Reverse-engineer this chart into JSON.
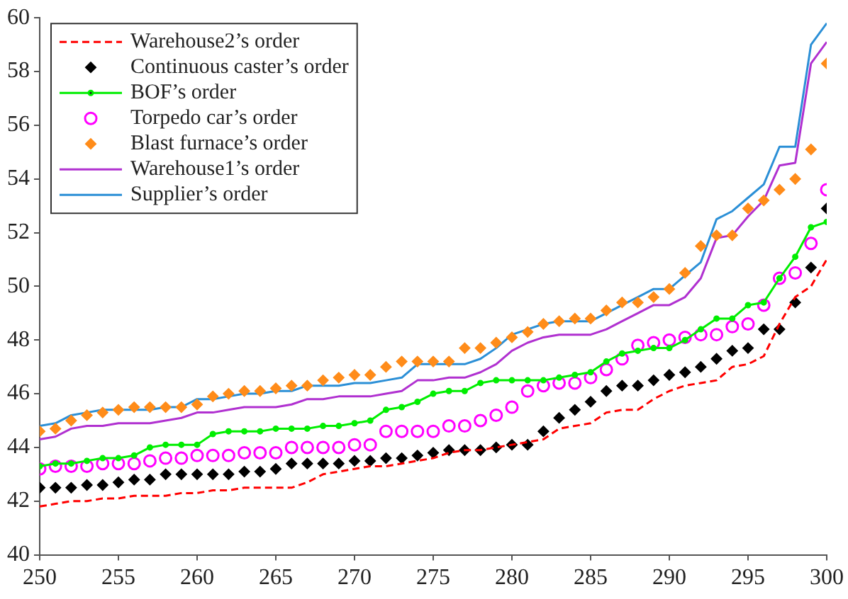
{
  "chart_data": {
    "type": "line",
    "x": [
      250,
      251,
      252,
      253,
      254,
      255,
      256,
      257,
      258,
      259,
      260,
      261,
      262,
      263,
      264,
      265,
      266,
      267,
      268,
      269,
      270,
      271,
      272,
      273,
      274,
      275,
      276,
      277,
      278,
      279,
      280,
      281,
      282,
      283,
      284,
      285,
      286,
      287,
      288,
      289,
      290,
      291,
      292,
      293,
      294,
      295,
      296,
      297,
      298,
      299,
      300
    ],
    "xlim": [
      250,
      300
    ],
    "xticks": [
      250,
      255,
      260,
      265,
      270,
      275,
      280,
      285,
      290,
      295,
      300
    ],
    "ylim": [
      40,
      60
    ],
    "yticks": [
      40,
      42,
      44,
      46,
      48,
      50,
      52,
      54,
      56,
      58,
      60
    ],
    "grid": false,
    "legend": "top left",
    "series": [
      {
        "name": "Warehouse2’s order",
        "type": "line",
        "color": "#ff0000",
        "marker": "none",
        "line_style": "dashed",
        "values": [
          41.8,
          41.9,
          42.0,
          42.0,
          42.1,
          42.1,
          42.2,
          42.2,
          42.2,
          42.3,
          42.3,
          42.4,
          42.4,
          42.5,
          42.5,
          42.5,
          42.5,
          42.7,
          43.0,
          43.1,
          43.2,
          43.3,
          43.3,
          43.4,
          43.5,
          43.6,
          43.8,
          43.9,
          43.9,
          44.0,
          44.1,
          44.2,
          44.3,
          44.7,
          44.8,
          44.9,
          45.3,
          45.4,
          45.4,
          45.8,
          46.1,
          46.3,
          46.4,
          46.5,
          47.0,
          47.1,
          47.4,
          48.6,
          49.6,
          50.0,
          51.0
        ]
      },
      {
        "name": "Continuous caster’s order",
        "type": "scatter",
        "color": "#000000",
        "marker": "diamond",
        "values": [
          42.5,
          42.5,
          42.5,
          42.6,
          42.6,
          42.7,
          42.8,
          42.8,
          43.0,
          43.0,
          43.0,
          43.0,
          43.0,
          43.1,
          43.1,
          43.2,
          43.4,
          43.4,
          43.4,
          43.4,
          43.5,
          43.5,
          43.6,
          43.6,
          43.7,
          43.8,
          43.9,
          43.9,
          43.9,
          44.0,
          44.1,
          44.1,
          44.6,
          45.1,
          45.4,
          45.7,
          46.1,
          46.3,
          46.3,
          46.5,
          46.7,
          46.8,
          47.0,
          47.3,
          47.6,
          47.7,
          48.4,
          48.4,
          49.4,
          50.7,
          52.9
        ]
      },
      {
        "name": "BOF’s order",
        "type": "line",
        "color": "#00ee00",
        "marker": "circle",
        "line_style": "solid",
        "values": [
          43.3,
          43.4,
          43.4,
          43.5,
          43.6,
          43.6,
          43.7,
          44.0,
          44.1,
          44.1,
          44.1,
          44.5,
          44.6,
          44.6,
          44.6,
          44.7,
          44.7,
          44.7,
          44.8,
          44.8,
          44.9,
          45.0,
          45.4,
          45.5,
          45.7,
          46.0,
          46.1,
          46.1,
          46.4,
          46.5,
          46.5,
          46.5,
          46.5,
          46.6,
          46.7,
          46.8,
          47.2,
          47.5,
          47.6,
          47.7,
          47.7,
          48.0,
          48.4,
          48.8,
          48.8,
          49.3,
          49.4,
          50.3,
          51.1,
          52.2,
          52.4
        ]
      },
      {
        "name": "Torpedo car’s order",
        "type": "scatter",
        "color": "#ff00ff",
        "marker": "circle",
        "values": [
          43.2,
          43.3,
          43.3,
          43.3,
          43.4,
          43.4,
          43.4,
          43.5,
          43.6,
          43.6,
          43.7,
          43.7,
          43.7,
          43.8,
          43.8,
          43.8,
          44.0,
          44.0,
          44.0,
          44.0,
          44.1,
          44.1,
          44.6,
          44.6,
          44.6,
          44.6,
          44.8,
          44.8,
          45.0,
          45.2,
          45.5,
          46.1,
          46.3,
          46.4,
          46.4,
          46.6,
          46.9,
          47.3,
          47.8,
          47.9,
          48.0,
          48.1,
          48.2,
          48.2,
          48.5,
          48.6,
          49.3,
          50.3,
          50.5,
          51.6,
          53.6
        ]
      },
      {
        "name": "Blast furnace’s order",
        "type": "scatter",
        "color": "#ff8c1a",
        "marker": "diamond",
        "values": [
          44.6,
          44.7,
          45.0,
          45.2,
          45.3,
          45.4,
          45.5,
          45.5,
          45.5,
          45.5,
          45.6,
          45.9,
          46.0,
          46.1,
          46.1,
          46.2,
          46.3,
          46.3,
          46.5,
          46.6,
          46.7,
          46.7,
          47.0,
          47.2,
          47.2,
          47.2,
          47.2,
          47.7,
          47.7,
          47.9,
          48.1,
          48.3,
          48.6,
          48.7,
          48.8,
          48.8,
          49.1,
          49.4,
          49.4,
          49.6,
          49.9,
          50.5,
          51.5,
          51.9,
          51.9,
          52.9,
          53.2,
          53.6,
          54.0,
          55.1,
          58.3
        ]
      },
      {
        "name": "Warehouse1’s order",
        "type": "line",
        "color": "#b030d0",
        "marker": "none",
        "line_style": "solid",
        "values": [
          44.3,
          44.4,
          44.7,
          44.8,
          44.8,
          44.9,
          44.9,
          44.9,
          45.0,
          45.1,
          45.3,
          45.3,
          45.4,
          45.5,
          45.5,
          45.5,
          45.6,
          45.8,
          45.8,
          45.9,
          45.9,
          45.9,
          46.0,
          46.1,
          46.5,
          46.5,
          46.6,
          46.6,
          46.8,
          47.1,
          47.6,
          47.9,
          48.1,
          48.2,
          48.2,
          48.2,
          48.4,
          48.7,
          49.0,
          49.3,
          49.3,
          49.6,
          50.3,
          51.8,
          51.9,
          52.6,
          53.2,
          54.5,
          54.6,
          58.3,
          59.1
        ]
      },
      {
        "name": "Supplier’s order",
        "type": "line",
        "color": "#2b8fd6",
        "marker": "none",
        "line_style": "solid",
        "values": [
          44.8,
          44.9,
          45.2,
          45.3,
          45.4,
          45.4,
          45.4,
          45.4,
          45.5,
          45.5,
          45.8,
          45.8,
          45.9,
          46.0,
          46.0,
          46.1,
          46.1,
          46.3,
          46.3,
          46.3,
          46.4,
          46.4,
          46.5,
          46.6,
          47.1,
          47.1,
          47.1,
          47.1,
          47.3,
          47.7,
          48.2,
          48.4,
          48.6,
          48.7,
          48.7,
          48.7,
          49.0,
          49.3,
          49.6,
          49.9,
          49.9,
          50.4,
          50.9,
          52.5,
          52.8,
          53.3,
          53.8,
          55.2,
          55.2,
          59.0,
          59.8
        ]
      }
    ]
  }
}
